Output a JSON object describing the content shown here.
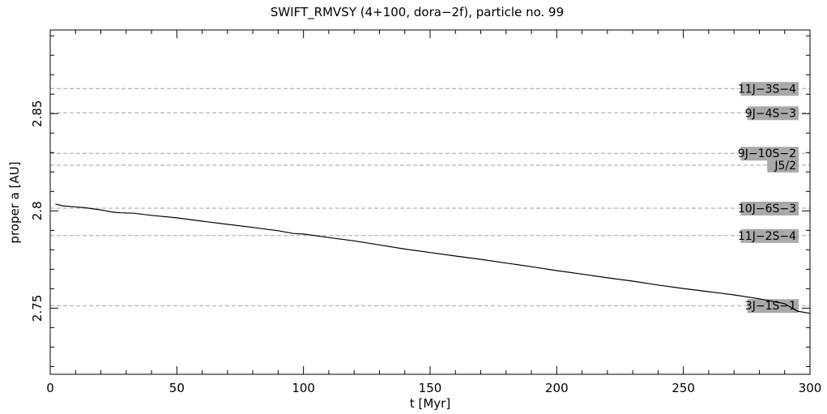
{
  "chart_data": {
    "type": "line",
    "title": "SWIFT_RMVSY (4+100, dora−2f), particle no. 99",
    "xlabel": "t [Myr]",
    "ylabel": "proper a [AU]",
    "xlim": [
      0,
      300
    ],
    "ylim": [
      2.716,
      2.893
    ],
    "x_ticks": [
      0,
      50,
      100,
      150,
      200,
      250,
      300
    ],
    "x_tick_labels": [
      "0",
      "50",
      "100",
      "150",
      "200",
      "250",
      "300"
    ],
    "y_ticks": [
      2.75,
      2.8,
      2.85
    ],
    "y_tick_labels": [
      "2.75",
      "2.8",
      "2.85"
    ],
    "grid": false,
    "series": [
      {
        "color": "#000000",
        "x": [
          2,
          5,
          10,
          14,
          20,
          25,
          28,
          33,
          40,
          50,
          60,
          70,
          80,
          90,
          96,
          100,
          110,
          120,
          130,
          140,
          150,
          160,
          170,
          180,
          190,
          200,
          210,
          220,
          230,
          240,
          250,
          260,
          270,
          280,
          290,
          295,
          300
        ],
        "y": [
          2.8035,
          2.8026,
          2.8021,
          2.8016,
          2.8005,
          2.7993,
          2.799,
          2.7988,
          2.7977,
          2.7964,
          2.7947,
          2.7931,
          2.7915,
          2.7898,
          2.7884,
          2.7881,
          2.7863,
          2.7846,
          2.7825,
          2.7804,
          2.7786,
          2.7768,
          2.7751,
          2.7732,
          2.7713,
          2.7693,
          2.7675,
          2.7656,
          2.7639,
          2.7619,
          2.7601,
          2.7585,
          2.7568,
          2.7548,
          2.7523,
          2.7485,
          2.7473
        ]
      }
    ],
    "resonances": [
      {
        "label": "11J−3S−4",
        "a": 2.8629
      },
      {
        "label": "9J−4S−3",
        "a": 2.8504
      },
      {
        "label": "9J−10S−2",
        "a": 2.8296
      },
      {
        "label": "J5/2",
        "a": 2.8235
      },
      {
        "label": "10J−6S−3",
        "a": 2.8014
      },
      {
        "label": "11J−2S−4",
        "a": 2.7873
      },
      {
        "label": "3J−1S−1",
        "a": 2.7513
      }
    ],
    "colors": {
      "line": "#000000",
      "resonance_line": "#a0a0a0",
      "label_box": "#a9a9a9"
    }
  }
}
